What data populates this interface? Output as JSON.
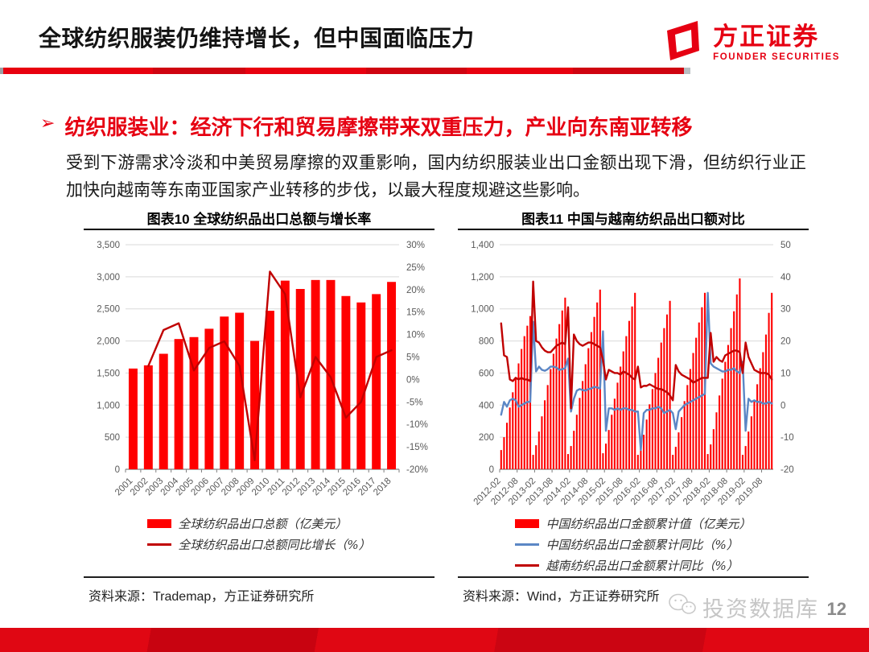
{
  "header": {
    "title": "全球纺织服装仍维持增长，但中国面临压力",
    "logo": {
      "cn": "方正证券",
      "en": "FOUNDER SECURITIES"
    }
  },
  "section": {
    "bullet": "➢",
    "heading": "纺织服装业：经济下行和贸易摩擦带来双重压力，产业向东南亚转移",
    "body": "受到下游需求冷淡和中美贸易摩擦的双重影响，国内纺织服装业出口金额出现下滑，但纺织行业正加快向越南等东南亚国家产业转移的步伐，以最大程度规避这些影响。"
  },
  "footer": {
    "watermark": "投资数据库",
    "page": "12"
  },
  "colors": {
    "brand_red": "#e60012",
    "bar_red": "#ff0000",
    "line_dark_red": "#c00000",
    "line_blue": "#5b87c5"
  },
  "chart_data": [
    {
      "type": "bar+line combo",
      "title": "图表10 全球纺织品出口总额与增长率",
      "source": "资料来源：Trademap，方正证券研究所",
      "legend_position": "bottom",
      "grid": true,
      "tick_every": 1,
      "left_axis": {
        "min": 0,
        "max": 3500,
        "step": 500
      },
      "right_axis": {
        "min": -20,
        "max": 30,
        "step": 5,
        "suffix": "%"
      },
      "categories": [
        "2001",
        "2002",
        "2003",
        "2004",
        "2005",
        "2006",
        "2007",
        "2008",
        "2009",
        "2010",
        "2011",
        "2012",
        "2013",
        "2014",
        "2015",
        "2016",
        "2017",
        "2018"
      ],
      "series": [
        {
          "name": "全球纺织品出口总额（亿美元）",
          "type": "bar",
          "axis": "left",
          "color": "#ff0000",
          "values": [
            1570,
            1620,
            1800,
            2030,
            2060,
            2190,
            2380,
            2440,
            2000,
            2470,
            2940,
            2810,
            2950,
            2950,
            2700,
            2600,
            2730,
            2920
          ]
        },
        {
          "name": "全球纺织品出口总额同比增长（%）",
          "type": "line",
          "axis": "right",
          "color": "#c00000",
          "values": [
            null,
            3,
            11,
            12.5,
            2,
            7,
            8.5,
            3,
            -18,
            24,
            19,
            -4,
            5,
            0.5,
            -8.5,
            -5,
            5,
            6.5
          ]
        }
      ]
    },
    {
      "type": "bar+line combo",
      "title": "图表11 中国与越南纺织品出口额对比",
      "source": "资料来源：Wind，方正证券研究所",
      "legend_position": "bottom",
      "grid": true,
      "tick_every": 6,
      "left_axis": {
        "min": 0,
        "max": 1400,
        "step": 200
      },
      "right_axis": {
        "min": -20,
        "max": 50,
        "step": 10,
        "suffix": ""
      },
      "categories": [
        "2012-02",
        "2012-03",
        "2012-04",
        "2012-05",
        "2012-06",
        "2012-07",
        "2012-08",
        "2012-09",
        "2012-10",
        "2012-11",
        "2012-12",
        "2013-01",
        "2013-02",
        "2013-03",
        "2013-04",
        "2013-05",
        "2013-06",
        "2013-07",
        "2013-08",
        "2013-09",
        "2013-10",
        "2013-11",
        "2013-12",
        "2014-01",
        "2014-02",
        "2014-03",
        "2014-04",
        "2014-05",
        "2014-06",
        "2014-07",
        "2014-08",
        "2014-09",
        "2014-10",
        "2014-11",
        "2014-12",
        "2015-01",
        "2015-02",
        "2015-03",
        "2015-04",
        "2015-05",
        "2015-06",
        "2015-07",
        "2015-08",
        "2015-09",
        "2015-10",
        "2015-11",
        "2015-12",
        "2016-01",
        "2016-02",
        "2016-03",
        "2016-04",
        "2016-05",
        "2016-06",
        "2016-07",
        "2016-08",
        "2016-09",
        "2016-10",
        "2016-11",
        "2016-12",
        "2017-01",
        "2017-02",
        "2017-03",
        "2017-04",
        "2017-05",
        "2017-06",
        "2017-07",
        "2017-08",
        "2017-09",
        "2017-10",
        "2017-11",
        "2017-12",
        "2018-01",
        "2018-02",
        "2018-03",
        "2018-04",
        "2018-05",
        "2018-06",
        "2018-07",
        "2018-08",
        "2018-09",
        "2018-10",
        "2018-11",
        "2018-12",
        "2019-01",
        "2019-02",
        "2019-03",
        "2019-04",
        "2019-05",
        "2019-06",
        "2019-07",
        "2019-08",
        "2019-09",
        "2019-10",
        "2019-11"
      ],
      "series": [
        {
          "name": "中国纺织品出口金额累计值（亿美元）",
          "type": "bar",
          "axis": "left",
          "color": "#ff0000",
          "values": [
            120,
            200,
            290,
            385,
            480,
            575,
            660,
            750,
            830,
            895,
            955,
            90,
            150,
            235,
            330,
            430,
            525,
            625,
            720,
            815,
            905,
            990,
            1070,
            95,
            145,
            240,
            340,
            445,
            550,
            655,
            755,
            855,
            950,
            1040,
            1120,
            100,
            160,
            245,
            340,
            440,
            540,
            640,
            735,
            830,
            925,
            1015,
            1100,
            90,
            130,
            215,
            310,
            405,
            500,
            600,
            695,
            790,
            880,
            965,
            1050,
            90,
            140,
            230,
            325,
            425,
            525,
            625,
            725,
            820,
            915,
            1010,
            1100,
            95,
            155,
            250,
            355,
            460,
            565,
            670,
            775,
            880,
            985,
            1090,
            1190,
            90,
            145,
            235,
            330,
            430,
            530,
            630,
            730,
            840,
            975,
            1100
          ]
        },
        {
          "name": "中国纺织品出口金额累计同比（%）",
          "type": "line",
          "axis": "right",
          "color": "#5b87c5",
          "values": [
            -3,
            1,
            -0.5,
            1.5,
            2,
            1.5,
            -0.5,
            0,
            0.5,
            1,
            1,
            26,
            10.5,
            12,
            11,
            10.7,
            11.2,
            12,
            12,
            11.7,
            11,
            11.2,
            11.5,
            14.5,
            -2,
            2,
            4.5,
            5,
            4.7,
            4.5,
            5,
            5.2,
            5.7,
            5.5,
            5.2,
            23,
            -8,
            -1,
            -1,
            -1.5,
            -1,
            -1.5,
            -1,
            -1,
            -1.5,
            -1.5,
            -2,
            -2,
            -14,
            -2.5,
            -1.5,
            -1.5,
            -1,
            -1,
            -0.5,
            -1,
            -2.5,
            -2,
            -1.5,
            -2.5,
            -7.5,
            -2,
            -1,
            0,
            0.5,
            1,
            1.5,
            2,
            2.5,
            3,
            3.5,
            35,
            13,
            12,
            11.5,
            11,
            10.5,
            10.5,
            11,
            11,
            11.5,
            10.5,
            10,
            13.5,
            -8,
            2,
            1,
            1.5,
            1,
            1,
            0.5,
            0.5,
            1,
            0.5
          ]
        },
        {
          "name": "越南纺织品出口金额累计同比（%）",
          "type": "line",
          "axis": "right",
          "color": "#c00000",
          "values": [
            25.5,
            15.5,
            15,
            8,
            7.5,
            8.5,
            8,
            8.5,
            8,
            8,
            7.5,
            38.5,
            20,
            19.5,
            18,
            17,
            16.5,
            16.5,
            17.5,
            18.5,
            19,
            19.5,
            19,
            30.5,
            -1,
            22,
            20,
            19,
            18.5,
            19,
            19.5,
            19.5,
            19,
            18.5,
            18,
            14,
            8,
            11,
            10.5,
            10,
            10,
            9.5,
            10.5,
            10,
            9.5,
            8.5,
            8,
            12,
            5.5,
            6,
            6,
            6.5,
            6,
            5.5,
            5,
            5,
            4.5,
            4,
            3,
            1.5,
            12.5,
            10.5,
            9.5,
            9,
            8.5,
            8,
            7,
            7.5,
            8,
            8.5,
            8.5,
            8.5,
            22.5,
            13.5,
            15,
            14,
            13.5,
            15.5,
            16,
            16.5,
            17,
            17,
            16.5,
            10,
            19.5,
            15,
            13,
            11,
            10.5,
            10,
            10,
            10,
            9.5,
            8
          ]
        }
      ]
    }
  ]
}
